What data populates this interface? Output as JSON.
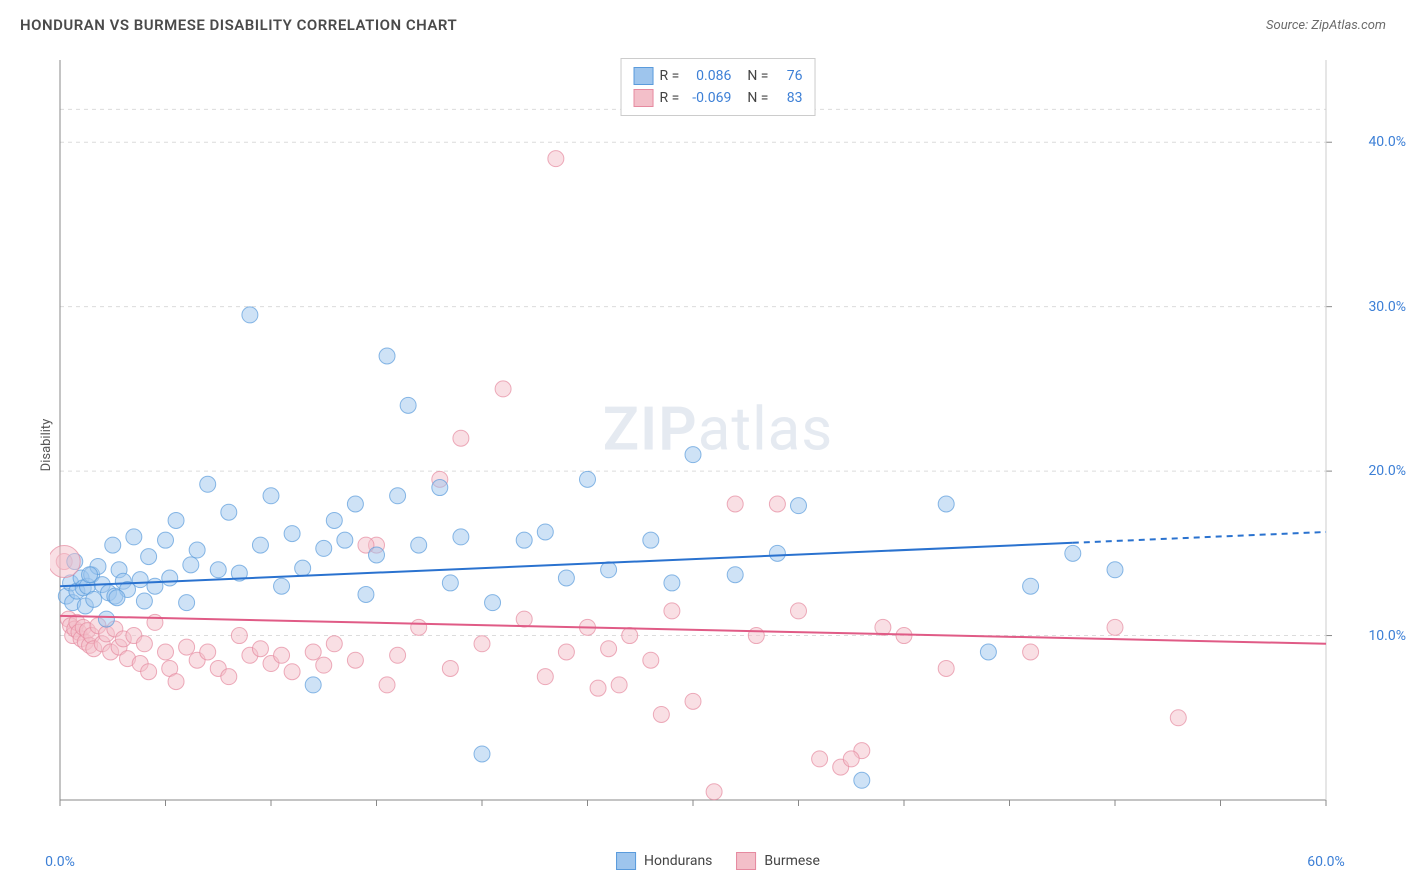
{
  "title": "HONDURAN VS BURMESE DISABILITY CORRELATION CHART",
  "source_label": "Source: ZipAtlas.com",
  "watermark": {
    "part1": "ZIP",
    "part2": "atlas"
  },
  "y_axis_label": "Disability",
  "chart": {
    "type": "scatter",
    "background_color": "#ffffff",
    "grid_color": "#dcdcdc",
    "xlim": [
      0,
      60
    ],
    "ylim": [
      0,
      45
    ],
    "x_ticks": [
      0,
      5,
      10,
      15,
      20,
      25,
      30,
      35,
      40,
      45,
      50,
      55,
      60
    ],
    "x_tick_labels": {
      "0": "0.0%",
      "60": "60.0%"
    },
    "y_ticks": [
      10,
      20,
      30,
      40
    ],
    "y_tick_labels": {
      "10": "10.0%",
      "20": "20.0%",
      "30": "30.0%",
      "40": "40.0%"
    },
    "marker_radius": 8,
    "marker_opacity": 0.5,
    "line_width": 2,
    "dash_segment_x_blue": 48
  },
  "series": {
    "hondurans": {
      "label": "Hondurans",
      "fill_color": "#9ec5ed",
      "stroke_color": "#5a9bdc",
      "R": "0.086",
      "N": "76",
      "trend": {
        "y_start": 13.0,
        "y_end": 16.3,
        "color": "#2a72cf"
      },
      "points": [
        [
          0.3,
          12.4
        ],
        [
          0.5,
          13.2
        ],
        [
          0.6,
          12.0
        ],
        [
          0.7,
          14.5
        ],
        [
          0.8,
          12.7
        ],
        [
          1.0,
          13.5
        ],
        [
          1.1,
          12.9
        ],
        [
          1.2,
          11.8
        ],
        [
          1.3,
          13.0
        ],
        [
          1.5,
          13.7
        ],
        [
          1.6,
          12.2
        ],
        [
          1.8,
          14.2
        ],
        [
          2.0,
          13.1
        ],
        [
          2.2,
          11.0
        ],
        [
          2.3,
          12.6
        ],
        [
          2.5,
          15.5
        ],
        [
          2.6,
          12.4
        ],
        [
          2.8,
          14.0
        ],
        [
          3.0,
          13.3
        ],
        [
          3.2,
          12.8
        ],
        [
          3.5,
          16.0
        ],
        [
          3.8,
          13.4
        ],
        [
          4.0,
          12.1
        ],
        [
          4.2,
          14.8
        ],
        [
          4.5,
          13.0
        ],
        [
          5.0,
          15.8
        ],
        [
          5.2,
          13.5
        ],
        [
          5.5,
          17.0
        ],
        [
          6.0,
          12.0
        ],
        [
          6.2,
          14.3
        ],
        [
          6.5,
          15.2
        ],
        [
          7.0,
          19.2
        ],
        [
          7.5,
          14.0
        ],
        [
          8.0,
          17.5
        ],
        [
          8.5,
          13.8
        ],
        [
          9.0,
          29.5
        ],
        [
          9.5,
          15.5
        ],
        [
          10.0,
          18.5
        ],
        [
          10.5,
          13.0
        ],
        [
          11.0,
          16.2
        ],
        [
          11.5,
          14.1
        ],
        [
          12.0,
          7.0
        ],
        [
          12.5,
          15.3
        ],
        [
          13.0,
          17.0
        ],
        [
          13.5,
          15.8
        ],
        [
          14.0,
          18.0
        ],
        [
          14.5,
          12.5
        ],
        [
          15.0,
          14.9
        ],
        [
          15.5,
          27.0
        ],
        [
          16.0,
          18.5
        ],
        [
          16.5,
          24.0
        ],
        [
          17.0,
          15.5
        ],
        [
          18.0,
          19.0
        ],
        [
          18.5,
          13.2
        ],
        [
          19.0,
          16.0
        ],
        [
          20.0,
          2.8
        ],
        [
          20.5,
          12.0
        ],
        [
          22.0,
          15.8
        ],
        [
          23.0,
          16.3
        ],
        [
          24.0,
          13.5
        ],
        [
          25.0,
          19.5
        ],
        [
          26.0,
          14.0
        ],
        [
          28.0,
          15.8
        ],
        [
          29.0,
          13.2
        ],
        [
          30.0,
          21.0
        ],
        [
          32.0,
          13.7
        ],
        [
          34.0,
          15.0
        ],
        [
          35.0,
          17.9
        ],
        [
          38.0,
          1.2
        ],
        [
          42.0,
          18.0
        ],
        [
          44.0,
          9.0
        ],
        [
          46.0,
          13.0
        ],
        [
          48.0,
          15.0
        ],
        [
          50.0,
          14.0
        ],
        [
          1.4,
          13.7
        ],
        [
          2.7,
          12.3
        ]
      ]
    },
    "burmese": {
      "label": "Burmese",
      "fill_color": "#f3bfc9",
      "stroke_color": "#e68aa0",
      "R": "-0.069",
      "N": "83",
      "trend": {
        "y_start": 11.2,
        "y_end": 9.5,
        "color": "#e05b86"
      },
      "points": [
        [
          0.2,
          14.5
        ],
        [
          0.4,
          11.0
        ],
        [
          0.5,
          10.6
        ],
        [
          0.6,
          10.0
        ],
        [
          0.7,
          10.4
        ],
        [
          0.8,
          10.8
        ],
        [
          0.9,
          10.2
        ],
        [
          1.0,
          9.8
        ],
        [
          1.1,
          10.5
        ],
        [
          1.2,
          9.6
        ],
        [
          1.3,
          10.3
        ],
        [
          1.4,
          9.4
        ],
        [
          1.5,
          10.0
        ],
        [
          1.6,
          9.2
        ],
        [
          1.8,
          10.6
        ],
        [
          2.0,
          9.5
        ],
        [
          2.2,
          10.1
        ],
        [
          2.4,
          9.0
        ],
        [
          2.6,
          10.4
        ],
        [
          2.8,
          9.3
        ],
        [
          3.0,
          9.8
        ],
        [
          3.2,
          8.6
        ],
        [
          3.5,
          10.0
        ],
        [
          3.8,
          8.3
        ],
        [
          4.0,
          9.5
        ],
        [
          4.2,
          7.8
        ],
        [
          4.5,
          10.8
        ],
        [
          5.0,
          9.0
        ],
        [
          5.2,
          8.0
        ],
        [
          5.5,
          7.2
        ],
        [
          6.0,
          9.3
        ],
        [
          6.5,
          8.5
        ],
        [
          7.0,
          9.0
        ],
        [
          7.5,
          8.0
        ],
        [
          8.0,
          7.5
        ],
        [
          8.5,
          10.0
        ],
        [
          9.0,
          8.8
        ],
        [
          9.5,
          9.2
        ],
        [
          10.0,
          8.3
        ],
        [
          10.5,
          8.8
        ],
        [
          11.0,
          7.8
        ],
        [
          12.0,
          9.0
        ],
        [
          12.5,
          8.2
        ],
        [
          13.0,
          9.5
        ],
        [
          14.0,
          8.5
        ],
        [
          15.0,
          15.5
        ],
        [
          15.5,
          7.0
        ],
        [
          16.0,
          8.8
        ],
        [
          17.0,
          10.5
        ],
        [
          18.0,
          19.5
        ],
        [
          18.5,
          8.0
        ],
        [
          19.0,
          22.0
        ],
        [
          20.0,
          9.5
        ],
        [
          21.0,
          25.0
        ],
        [
          22.0,
          11.0
        ],
        [
          23.0,
          7.5
        ],
        [
          23.5,
          39.0
        ],
        [
          24.0,
          9.0
        ],
        [
          25.0,
          10.5
        ],
        [
          25.5,
          6.8
        ],
        [
          26.0,
          9.2
        ],
        [
          26.5,
          7.0
        ],
        [
          27.0,
          10.0
        ],
        [
          28.0,
          8.5
        ],
        [
          28.5,
          5.2
        ],
        [
          29.0,
          11.5
        ],
        [
          30.0,
          6.0
        ],
        [
          31.0,
          0.5
        ],
        [
          32.0,
          18.0
        ],
        [
          33.0,
          10.0
        ],
        [
          34.0,
          18.0
        ],
        [
          35.0,
          11.5
        ],
        [
          36.0,
          2.5
        ],
        [
          37.0,
          2.0
        ],
        [
          38.0,
          3.0
        ],
        [
          39.0,
          10.5
        ],
        [
          40.0,
          10.0
        ],
        [
          42.0,
          8.0
        ],
        [
          46.0,
          9.0
        ],
        [
          50.0,
          10.5
        ],
        [
          53.0,
          5.0
        ],
        [
          37.5,
          2.5
        ],
        [
          14.5,
          15.5
        ]
      ]
    }
  },
  "legend_top": {
    "r_label": "R =",
    "n_label": "N ="
  }
}
